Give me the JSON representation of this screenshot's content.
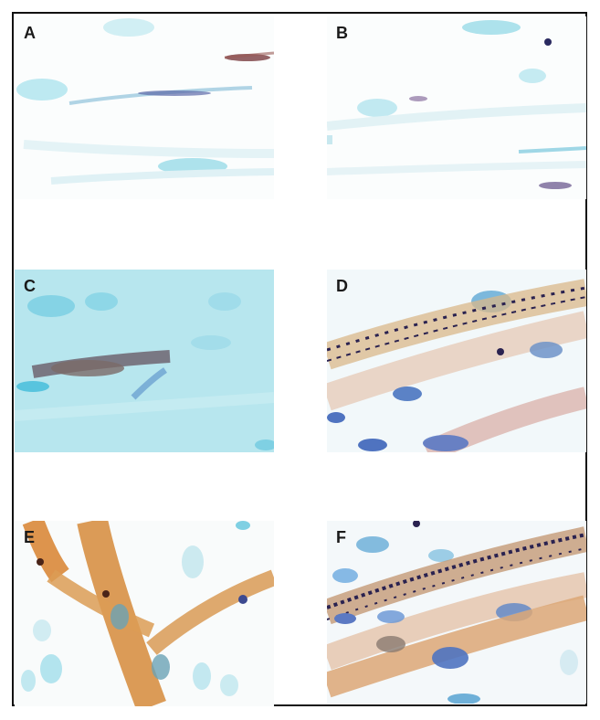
{
  "figure": {
    "panels": [
      {
        "label": "A"
      },
      {
        "label": "B"
      },
      {
        "label": "C"
      },
      {
        "label": "D"
      },
      {
        "label": "E"
      },
      {
        "label": "F"
      }
    ]
  },
  "colors": {
    "nucleus_counterstain": "#3fc3d8",
    "brown_stain": "#c86a2a",
    "dark_nuclei": "#2a2050",
    "blue_nuclei": "#3e63c2"
  }
}
